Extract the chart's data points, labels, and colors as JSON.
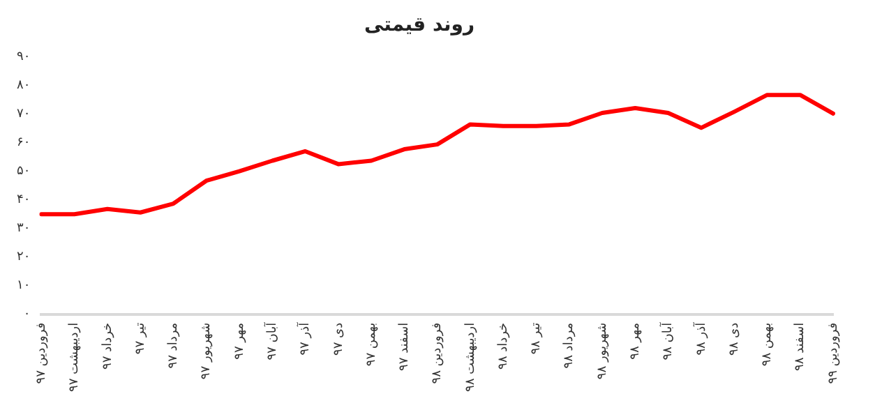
{
  "chart_data": {
    "type": "line",
    "title": "روند قیمتی",
    "categories": [
      "فروردین ۹۷",
      "اردیبهشت ۹۷",
      "خرداد ۹۷",
      "تیر ۹۷",
      "مرداد ۹۷",
      "شهریور ۹۷",
      "مهر ۹۷",
      "آبان ۹۷",
      "آذر ۹۷",
      "دی ۹۷",
      "بهمن ۹۷",
      "اسفند ۹۷",
      "فروردین ۹۸",
      "اردیبهشت ۹۸",
      "خرداد ۹۸",
      "تیر ۹۸",
      "مرداد ۹۸",
      "شهریور ۹۸",
      "مهر ۹۸",
      "آبان ۹۸",
      "آذر ۹۸",
      "دی ۹۸",
      "بهمن ۹۸",
      "اسفند ۹۸",
      "فروردین ۹۹"
    ],
    "series": [
      {
        "color": "#ff0000",
        "values": [
          35,
          35,
          36.8,
          35.6,
          38.7,
          46.7,
          50,
          53.7,
          57,
          52.5,
          53.7,
          57.7,
          59.4,
          66.4,
          65.8,
          65.8,
          66.4,
          70.4,
          72.1,
          70.4,
          65.2,
          70.8,
          76.7,
          76.7,
          70.2
        ]
      }
    ],
    "ylim": [
      0,
      90
    ],
    "yticks": [
      {
        "value": 0,
        "label": "۰"
      },
      {
        "value": 10,
        "label": "۱۰"
      },
      {
        "value": 20,
        "label": "۲۰"
      },
      {
        "value": 30,
        "label": "۳۰"
      },
      {
        "value": 40,
        "label": "۴۰"
      },
      {
        "value": 50,
        "label": "۵۰"
      },
      {
        "value": 60,
        "label": "۶۰"
      },
      {
        "value": 70,
        "label": "۷۰"
      },
      {
        "value": 80,
        "label": "۸۰"
      },
      {
        "value": 90,
        "label": "۹۰"
      }
    ],
    "grid": false,
    "legend": false,
    "marker": "none",
    "line_style": "solid"
  }
}
